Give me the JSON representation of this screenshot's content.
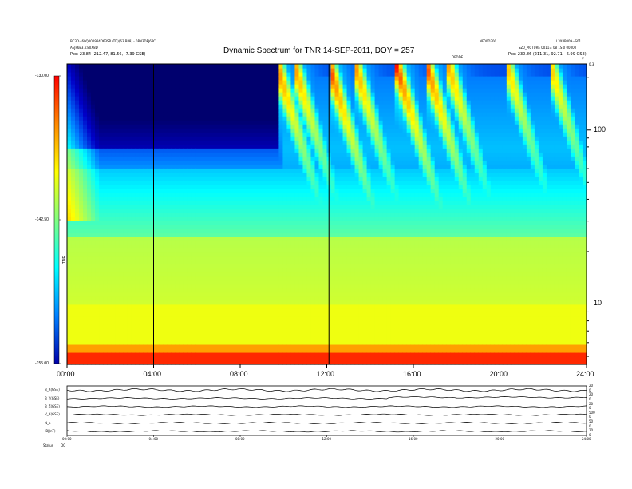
{
  "header": {
    "title": "Dynamic Spectrum for TNR 14-SEP-2011, DOY = 257",
    "top_left": [
      "BC3D=60Q0009P4D63SP (TD)(63.BP8) - 0PN3DEJ6PC",
      "AEJP6E3.V.80X8D",
      "Pos:    23.84 (212.47, 81.56, -7.39 GSE)"
    ],
    "top_right_small": "NF00D300",
    "top_right": [
      "L3X8P009=S01",
      "SZ0_PICTURE 0011= 08 1S 0 00000",
      "Pos:    230.86 (211.31, 92.71, -6.99 GSE)"
    ],
    "center_small": "OPDDE",
    "corner_small": "V",
    "corner_right_small": "0.3"
  },
  "colorbar": {
    "ticks": [
      "-130.00",
      "-142.50",
      "-155.00"
    ],
    "label": "TNR",
    "colors": [
      "#ff0000",
      "#ff8800",
      "#ffff00",
      "#80ff80",
      "#00ffff",
      "#0080ff",
      "#0000aa"
    ]
  },
  "chart_data": {
    "type": "heatmap",
    "title": "Dynamic Spectrum for TNR 14-SEP-2011, DOY = 257",
    "x_tick_labels": [
      "00:00",
      "04:00",
      "08:00",
      "12:00",
      "16:00",
      "20:00",
      "24:00"
    ],
    "x_range_hours": [
      0,
      24
    ],
    "y_scale": "log",
    "y_tick_labels": [
      "100",
      "10"
    ],
    "y_ticks": [
      100,
      10
    ],
    "y_range": [
      4.5,
      240
    ],
    "z_range": [
      -155.0,
      -130.0
    ],
    "vertical_markers_hours": [
      4.0,
      12.1
    ],
    "type_iii_bursts": [
      {
        "start_hour": 9.7,
        "peak_power": -132
      },
      {
        "start_hour": 10.5,
        "peak_power": -133
      },
      {
        "start_hour": 12.1,
        "peak_power": -130
      },
      {
        "start_hour": 13.3,
        "peak_power": -133
      },
      {
        "start_hour": 15.2,
        "peak_power": -130
      },
      {
        "start_hour": 16.6,
        "peak_power": -131
      },
      {
        "start_hour": 17.6,
        "peak_power": -134
      },
      {
        "start_hour": 20.3,
        "peak_power": -135
      },
      {
        "start_hour": 22.3,
        "peak_power": -135
      }
    ]
  },
  "lower_panel": {
    "x_tick_labels": [
      "00:00",
      "04:00",
      "08:00",
      "12:00",
      "16:00",
      "20:00",
      "24:00"
    ],
    "left_labels": [
      "B_X(GSE)",
      "B_Y(GSE)",
      "B_Z(GSE)",
      "V_X(GSE)",
      "N_p",
      "|B|(nT)"
    ],
    "right_labels": [
      "20",
      "0",
      "20",
      "0",
      "20",
      "0",
      "500",
      "0",
      "50",
      "0",
      "20",
      "0"
    ],
    "footer_label": "Status",
    "footer_value": "QQ"
  }
}
